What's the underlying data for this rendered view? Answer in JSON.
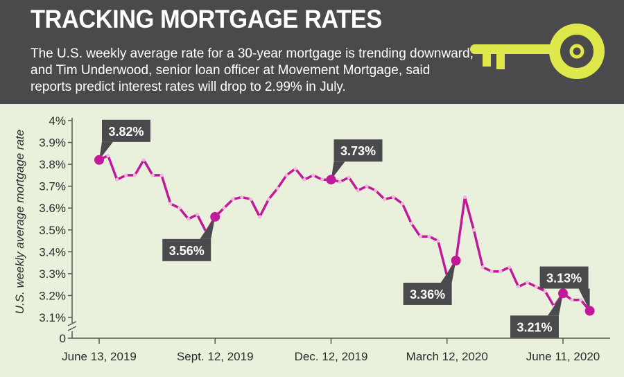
{
  "header": {
    "title": "TRACKING MORTGAGE RATES",
    "subtitle": "The U.S. weekly average rate for a 30-year mortgage is trending downward, and Tim Underwood, senior loan officer at Movement Mortgage, said reports predict interest rates will drop to 2.99% in July."
  },
  "icons": {
    "header_icon": "key-icon"
  },
  "colors": {
    "header_bg": "#4a4a4c",
    "chart_bg": "#e9f0dc",
    "line": "#c2189a",
    "marker_small": "#f0b8dc",
    "callout_bg": "#4a4a4c",
    "key": "#dfe84a"
  },
  "chart_data": {
    "type": "line",
    "ylabel": "U.S. weekly average mortgage rate",
    "x_tick_labels": [
      "June 13, 2019",
      "Sept. 12, 2019",
      "Dec. 12, 2019",
      "March 12, 2020",
      "June 11, 2020"
    ],
    "x_tick_index": [
      0,
      13,
      26,
      39,
      52
    ],
    "y_ticks": [
      "0",
      "3.1%",
      "3.2%",
      "3.3%",
      "3.4%",
      "3.5%",
      "3.6%",
      "3.7%",
      "3.8%",
      "3.9%",
      "4%"
    ],
    "ylim": [
      3.0,
      4.0
    ],
    "axis_break": true,
    "grid": false,
    "values": [
      3.82,
      3.84,
      3.73,
      3.75,
      3.75,
      3.82,
      3.75,
      3.75,
      3.62,
      3.6,
      3.55,
      3.57,
      3.49,
      3.56,
      3.6,
      3.64,
      3.65,
      3.64,
      3.56,
      3.64,
      3.69,
      3.75,
      3.78,
      3.73,
      3.75,
      3.73,
      3.73,
      3.72,
      3.74,
      3.68,
      3.7,
      3.68,
      3.64,
      3.65,
      3.62,
      3.53,
      3.47,
      3.47,
      3.45,
      3.29,
      3.36,
      3.65,
      3.5,
      3.33,
      3.31,
      3.31,
      3.33,
      3.24,
      3.26,
      3.24,
      3.22,
      3.15,
      3.21,
      3.18,
      3.18,
      3.13
    ],
    "annotations": [
      {
        "index": 0,
        "label": "3.82%",
        "pos": "above-right"
      },
      {
        "index": 13,
        "label": "3.56%",
        "pos": "below-left"
      },
      {
        "index": 26,
        "label": "3.73%",
        "pos": "above-right"
      },
      {
        "index": 40,
        "label": "3.36%",
        "pos": "below-left"
      },
      {
        "index": 52,
        "label": "3.21%",
        "pos": "below-left"
      },
      {
        "index": 55,
        "label": "3.13%",
        "pos": "above-left"
      }
    ]
  }
}
